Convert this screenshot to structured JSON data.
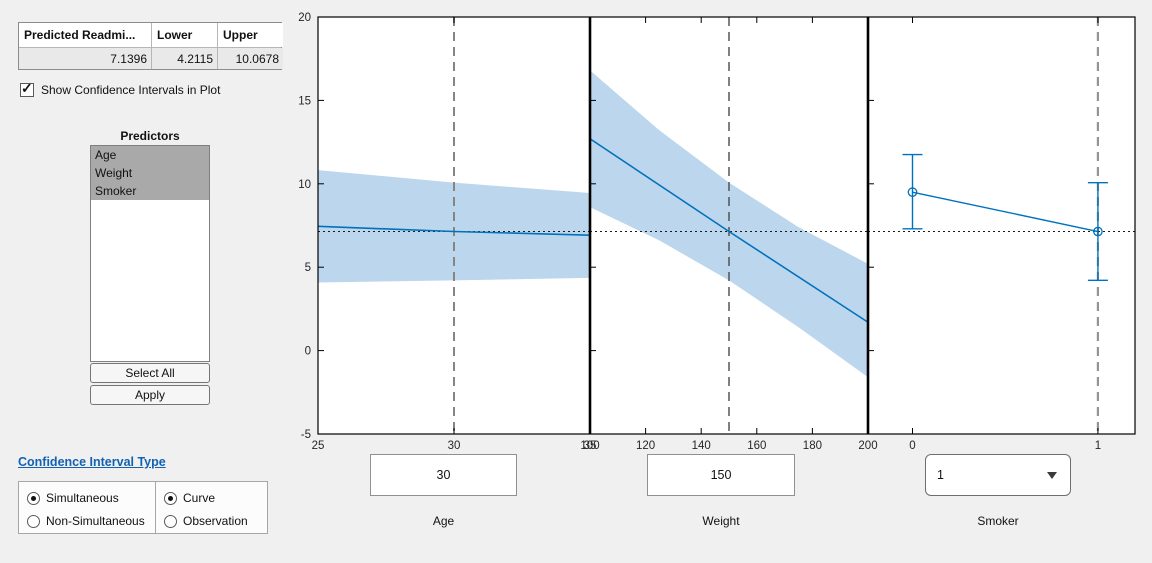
{
  "prediction_table": {
    "headers": [
      "Predicted Readmi...",
      "Lower",
      "Upper"
    ],
    "values": [
      "7.1396",
      "4.2115",
      "10.0678"
    ]
  },
  "show_ci_checkbox": {
    "label": "Show Confidence Intervals in Plot",
    "checked": true
  },
  "predictors_panel": {
    "title": "Predictors",
    "items": [
      "Age",
      "Weight",
      "Smoker"
    ],
    "selected_items": [
      "Age",
      "Weight",
      "Smoker"
    ],
    "select_all_label": "Select All",
    "apply_label": "Apply"
  },
  "ci_type": {
    "link_label": "Confidence Interval Type",
    "link_color": "#1262b3",
    "groups": [
      {
        "options": [
          {
            "label": "Simultaneous",
            "selected": true
          },
          {
            "label": "Non-Simultaneous",
            "selected": false
          }
        ]
      },
      {
        "options": [
          {
            "label": "Curve",
            "selected": true
          },
          {
            "label": "Observation",
            "selected": false
          }
        ]
      }
    ]
  },
  "controls": [
    {
      "type": "input",
      "value": "30",
      "label": "Age"
    },
    {
      "type": "input",
      "value": "150",
      "label": "Weight"
    },
    {
      "type": "dropdown",
      "value": "1",
      "label": "Smoker"
    }
  ],
  "chart_data": {
    "type": "line",
    "title": "",
    "ylim": [
      -5,
      20
    ],
    "yticks": [
      -5,
      0,
      5,
      10,
      15,
      20
    ],
    "ref_value": 7.1396,
    "colors": {
      "fit_line": "#0072BD",
      "band": "#BCD6EE",
      "ref_line": "#1a1a1a",
      "axis": "#000000"
    },
    "panels": [
      {
        "name": "Age",
        "xlim": [
          25,
          35
        ],
        "xticks": [
          25,
          30,
          35
        ],
        "current_value": 30,
        "vline": {
          "x": 30,
          "color": "#858585",
          "width": 2
        },
        "band": {
          "x": [
            25,
            30,
            35
          ],
          "upper": [
            10.82,
            10.07,
            9.45
          ],
          "lower": [
            4.08,
            4.21,
            4.36
          ]
        },
        "fit": {
          "x": [
            25,
            30,
            35
          ],
          "y": [
            7.45,
            7.1396,
            6.92
          ]
        }
      },
      {
        "name": "Weight",
        "xlim": [
          100,
          200
        ],
        "xticks": [
          100,
          120,
          140,
          160,
          180,
          200
        ],
        "current_value": 150,
        "vline": {
          "x": 150,
          "color": "#4a4a4a",
          "width": 1.4
        },
        "band": {
          "x": [
            100,
            125,
            150,
            175,
            200
          ],
          "upper": [
            16.8,
            13.2,
            10.07,
            7.4,
            5.2
          ],
          "lower": [
            8.6,
            6.6,
            4.21,
            1.4,
            -1.6
          ]
        },
        "fit": {
          "x": [
            100,
            150,
            200
          ],
          "y": [
            12.7,
            7.1396,
            1.7
          ]
        }
      },
      {
        "name": "Smoker",
        "xlim": [
          -0.24,
          1.2
        ],
        "xticks": [
          0,
          1
        ],
        "current_value": 1,
        "vline": {
          "x": 1,
          "color": "#949494",
          "width": 2.2
        },
        "points": [
          {
            "x": 0,
            "y": 9.5,
            "ci_lower": 7.3,
            "ci_upper": 11.75
          },
          {
            "x": 1,
            "y": 7.1396,
            "ci_lower": 4.2115,
            "ci_upper": 10.0678
          }
        ]
      }
    ]
  }
}
